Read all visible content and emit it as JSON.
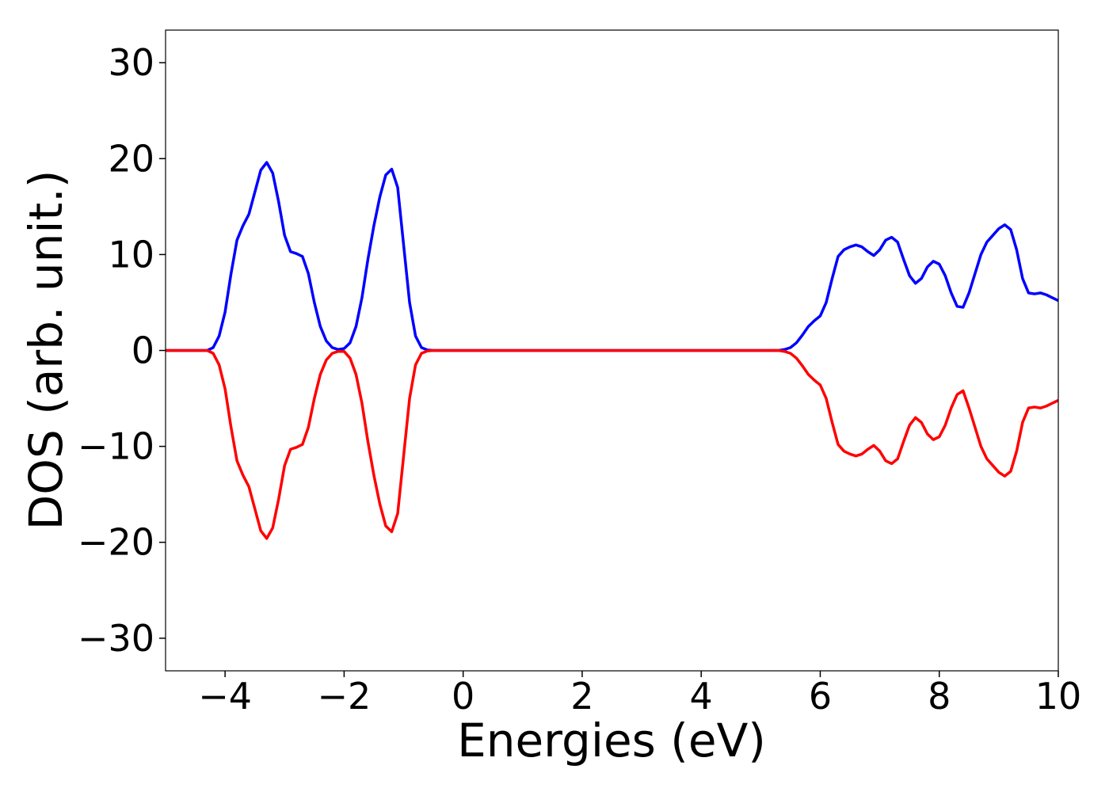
{
  "chart_data": {
    "type": "line",
    "x_label": "Energies (eV)",
    "y_label": "DOS (arb. unit.)",
    "x": [
      -5,
      -4.3,
      -4.2,
      -4.1,
      -4.0,
      -3.9,
      -3.8,
      -3.7,
      -3.6,
      -3.5,
      -3.4,
      -3.3,
      -3.2,
      -3.1,
      -3.0,
      -2.9,
      -2.8,
      -2.7,
      -2.6,
      -2.5,
      -2.4,
      -2.3,
      -2.2,
      -2.1,
      -2.0,
      -1.9,
      -1.8,
      -1.7,
      -1.6,
      -1.5,
      -1.4,
      -1.3,
      -1.2,
      -1.1,
      -1.0,
      -0.9,
      -0.8,
      -0.7,
      -0.6,
      -0.5,
      5.3,
      5.4,
      5.5,
      5.6,
      5.7,
      5.8,
      5.9,
      6.0,
      6.1,
      6.2,
      6.3,
      6.4,
      6.5,
      6.6,
      6.7,
      6.8,
      6.9,
      7.0,
      7.1,
      7.2,
      7.3,
      7.4,
      7.5,
      7.6,
      7.7,
      7.8,
      7.9,
      8.0,
      8.1,
      8.2,
      8.3,
      8.4,
      8.5,
      8.6,
      8.7,
      8.8,
      8.9,
      9.0,
      9.1,
      9.2,
      9.3,
      9.4,
      9.5,
      9.6,
      9.7,
      9.8,
      9.9,
      10.0
    ],
    "series": [
      {
        "color": "#0000ff",
        "values": [
          0,
          0,
          0.3,
          1.5,
          4,
          8,
          11.5,
          13,
          14.2,
          16.5,
          18.8,
          19.6,
          18.5,
          15.5,
          12,
          10.3,
          10.1,
          9.8,
          8,
          5,
          2.5,
          1,
          0.3,
          0.1,
          0.2,
          0.8,
          2.5,
          5.5,
          9.5,
          13,
          16,
          18.3,
          18.9,
          17,
          11,
          5,
          1.5,
          0.3,
          0.05,
          0,
          0,
          0.1,
          0.3,
          0.8,
          1.6,
          2.5,
          3.1,
          3.6,
          5,
          7.5,
          9.8,
          10.5,
          10.8,
          11,
          10.8,
          10.3,
          9.9,
          10.5,
          11.5,
          11.8,
          11.3,
          9.5,
          7.8,
          7,
          7.5,
          8.7,
          9.3,
          9,
          7.8,
          6,
          4.6,
          4.5,
          6,
          8,
          10,
          11.3,
          12,
          12.7,
          13.1,
          12.6,
          10.5,
          7.5,
          6,
          5.9,
          6,
          5.8,
          5.5,
          5.2
        ]
      },
      {
        "color": "#ff0000",
        "values": [
          0,
          0,
          -0.3,
          -1.5,
          -4,
          -8,
          -11.5,
          -13,
          -14.2,
          -16.5,
          -18.8,
          -19.6,
          -18.5,
          -15.5,
          -12,
          -10.3,
          -10.1,
          -9.8,
          -8,
          -5,
          -2.5,
          -1,
          -0.3,
          -0.1,
          -0.1,
          -0.8,
          -2.5,
          -5.5,
          -9.5,
          -13,
          -16,
          -18.3,
          -18.9,
          -17,
          -11,
          -5,
          -1.5,
          -0.3,
          -0.05,
          0,
          0,
          -0.1,
          -0.3,
          -0.8,
          -1.6,
          -2.5,
          -3.1,
          -3.6,
          -5,
          -7.5,
          -9.8,
          -10.5,
          -10.8,
          -11,
          -10.8,
          -10.3,
          -9.9,
          -10.5,
          -11.5,
          -11.8,
          -11.3,
          -9.5,
          -7.8,
          -7,
          -7.5,
          -8.7,
          -9.3,
          -9,
          -7.8,
          -6,
          -4.6,
          -4.2,
          -6,
          -8,
          -10,
          -11.3,
          -12,
          -12.7,
          -13.1,
          -12.6,
          -10.5,
          -7.5,
          -6,
          -5.9,
          -6,
          -5.8,
          -5.5,
          -5.2
        ]
      }
    ],
    "xlim": [
      -5,
      10
    ],
    "ylim": [
      -33.4,
      33.4
    ],
    "xticks": [
      {
        "value": -4,
        "label": "−4"
      },
      {
        "value": -2,
        "label": "−2"
      },
      0,
      2,
      4,
      6,
      8,
      10
    ],
    "yticks": [
      {
        "value": -30,
        "label": "−30"
      },
      {
        "value": -20,
        "label": "−20"
      },
      {
        "value": -10,
        "label": "−10"
      },
      0,
      10,
      20,
      30
    ]
  }
}
